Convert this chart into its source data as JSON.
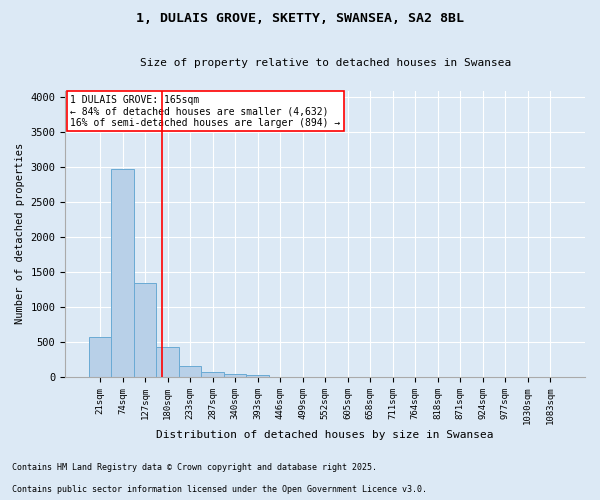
{
  "title": "1, DULAIS GROVE, SKETTY, SWANSEA, SA2 8BL",
  "subtitle": "Size of property relative to detached houses in Swansea",
  "xlabel": "Distribution of detached houses by size in Swansea",
  "ylabel": "Number of detached properties",
  "footnote1": "Contains HM Land Registry data © Crown copyright and database right 2025.",
  "footnote2": "Contains public sector information licensed under the Open Government Licence v3.0.",
  "categories": [
    "21sqm",
    "74sqm",
    "127sqm",
    "180sqm",
    "233sqm",
    "287sqm",
    "340sqm",
    "393sqm",
    "446sqm",
    "499sqm",
    "552sqm",
    "605sqm",
    "658sqm",
    "711sqm",
    "764sqm",
    "818sqm",
    "871sqm",
    "924sqm",
    "977sqm",
    "1030sqm",
    "1083sqm"
  ],
  "values": [
    580,
    2970,
    1340,
    430,
    155,
    75,
    50,
    35,
    0,
    0,
    0,
    0,
    0,
    0,
    0,
    0,
    0,
    0,
    0,
    0,
    0
  ],
  "bar_color": "#b8d0e8",
  "bar_edge_color": "#6aaad4",
  "background_color": "#dce9f5",
  "vline_x": 2.73,
  "vline_color": "red",
  "annotation_text": "1 DULAIS GROVE: 165sqm\n← 84% of detached houses are smaller (4,632)\n16% of semi-detached houses are larger (894) →",
  "annotation_box_color": "white",
  "annotation_box_edge": "red",
  "ylim": [
    0,
    4100
  ],
  "yticks": [
    0,
    500,
    1000,
    1500,
    2000,
    2500,
    3000,
    3500,
    4000
  ]
}
